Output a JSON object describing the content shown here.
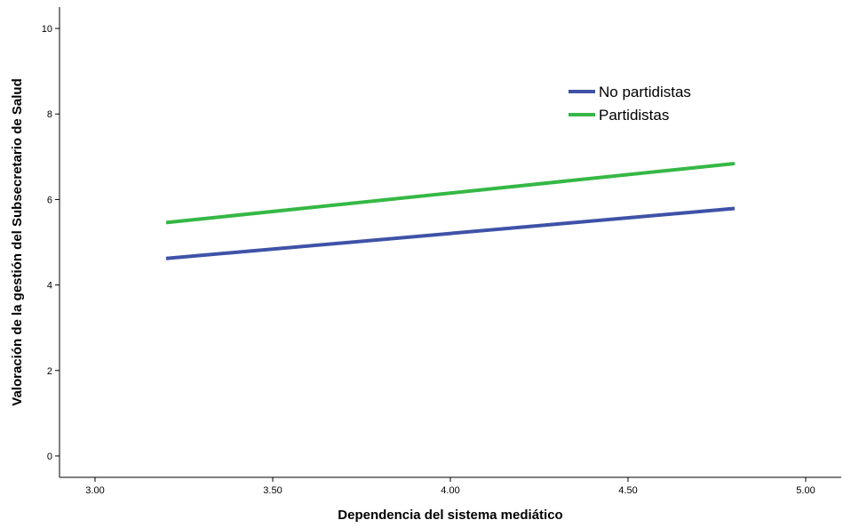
{
  "chart_data": {
    "type": "line",
    "title": "",
    "xlabel": "Dependencia del sistema mediático",
    "ylabel": "Valoración de la gestión del Subsecretario de Salud",
    "xlim": [
      2.9,
      5.1
    ],
    "ylim": [
      -0.5,
      10.5
    ],
    "xticks": [
      3.0,
      3.5,
      4.0,
      4.5,
      5.0
    ],
    "xtick_labels": [
      "3.00",
      "3.50",
      "4.00",
      "4.50",
      "5.00"
    ],
    "yticks": [
      0,
      2,
      4,
      6,
      8,
      10
    ],
    "ytick_labels": [
      "0",
      "2",
      "4",
      "6",
      "8",
      "10"
    ],
    "grid": false,
    "legend_position": "top-right",
    "series": [
      {
        "name": "No partidistas",
        "color": "#3f52a8",
        "x": [
          3.2,
          4.8
        ],
        "y": [
          4.62,
          5.79
        ]
      },
      {
        "name": "Partidistas",
        "color": "#35b845",
        "x": [
          3.2,
          4.8
        ],
        "y": [
          5.46,
          6.84
        ]
      }
    ]
  }
}
